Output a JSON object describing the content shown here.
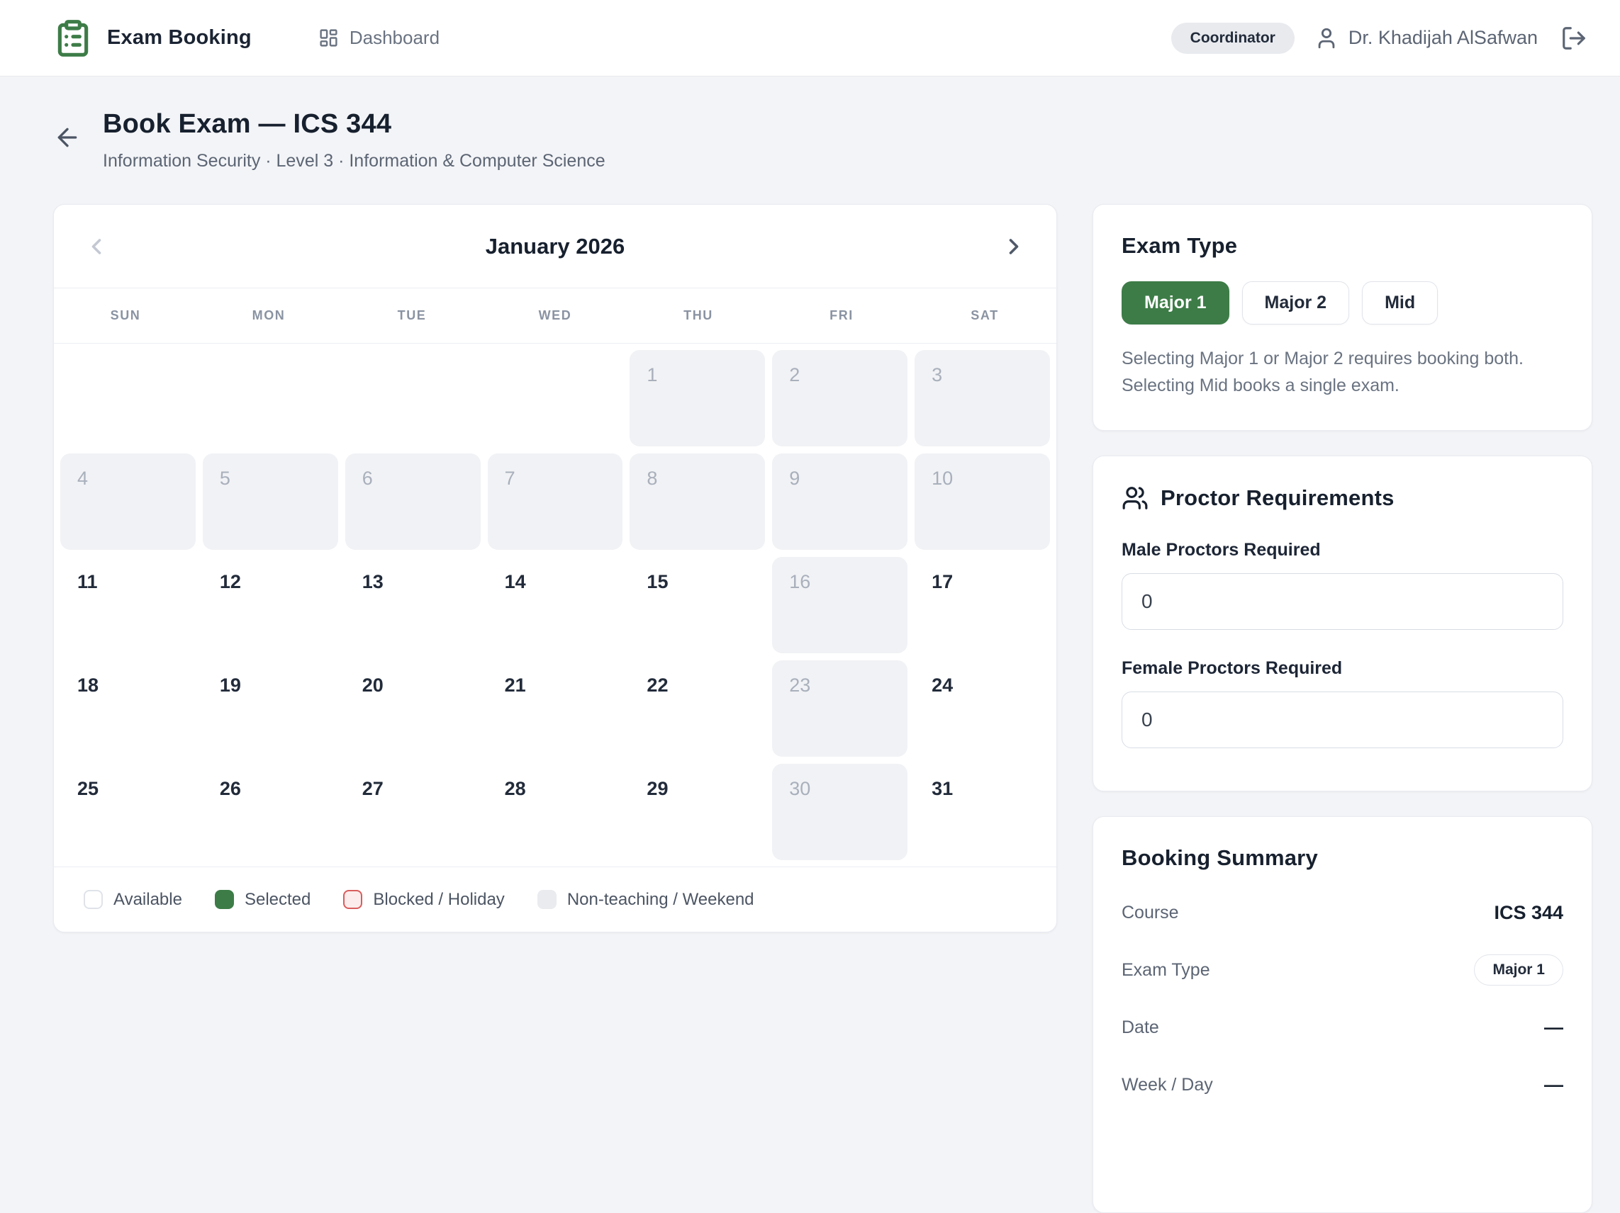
{
  "header": {
    "app_title": "Exam Booking",
    "nav_dashboard": "Dashboard",
    "role_badge": "Coordinator",
    "user_name": "Dr. Khadijah AlSafwan"
  },
  "page": {
    "title": "Book Exam — ICS 344",
    "subtitle": "Information Security · Level 3 · Information & Computer Science"
  },
  "calendar": {
    "month_title": "January 2026",
    "weekdays": [
      "SUN",
      "MON",
      "TUE",
      "WED",
      "THU",
      "FRI",
      "SAT"
    ],
    "cells": [
      {
        "day": "",
        "state": "empty"
      },
      {
        "day": "",
        "state": "empty"
      },
      {
        "day": "",
        "state": "empty"
      },
      {
        "day": "",
        "state": "empty"
      },
      {
        "day": "1",
        "state": "nonteaching"
      },
      {
        "day": "2",
        "state": "nonteaching"
      },
      {
        "day": "3",
        "state": "nonteaching"
      },
      {
        "day": "4",
        "state": "nonteaching"
      },
      {
        "day": "5",
        "state": "nonteaching"
      },
      {
        "day": "6",
        "state": "nonteaching"
      },
      {
        "day": "7",
        "state": "nonteaching"
      },
      {
        "day": "8",
        "state": "nonteaching"
      },
      {
        "day": "9",
        "state": "nonteaching"
      },
      {
        "day": "10",
        "state": "nonteaching"
      },
      {
        "day": "11",
        "state": "available"
      },
      {
        "day": "12",
        "state": "available"
      },
      {
        "day": "13",
        "state": "available"
      },
      {
        "day": "14",
        "state": "available"
      },
      {
        "day": "15",
        "state": "available"
      },
      {
        "day": "16",
        "state": "nonteaching"
      },
      {
        "day": "17",
        "state": "available"
      },
      {
        "day": "18",
        "state": "available"
      },
      {
        "day": "19",
        "state": "available"
      },
      {
        "day": "20",
        "state": "available"
      },
      {
        "day": "21",
        "state": "available"
      },
      {
        "day": "22",
        "state": "available"
      },
      {
        "day": "23",
        "state": "nonteaching"
      },
      {
        "day": "24",
        "state": "available"
      },
      {
        "day": "25",
        "state": "available"
      },
      {
        "day": "26",
        "state": "available"
      },
      {
        "day": "27",
        "state": "available"
      },
      {
        "day": "28",
        "state": "available"
      },
      {
        "day": "29",
        "state": "available"
      },
      {
        "day": "30",
        "state": "nonteaching"
      },
      {
        "day": "31",
        "state": "available"
      }
    ],
    "legend": [
      {
        "label": "Available",
        "type": "available"
      },
      {
        "label": "Selected",
        "type": "selected"
      },
      {
        "label": "Blocked / Holiday",
        "type": "blocked"
      },
      {
        "label": "Non-teaching / Weekend",
        "type": "nonteaching"
      }
    ]
  },
  "exam_type": {
    "heading": "Exam Type",
    "options": [
      "Major 1",
      "Major 2",
      "Mid"
    ],
    "selected": "Major 1",
    "helper": "Selecting Major 1 or Major 2 requires booking both. Selecting Mid books a single exam."
  },
  "proctors": {
    "heading": "Proctor Requirements",
    "male_label": "Male Proctors Required",
    "male_value": "0",
    "female_label": "Female Proctors Required",
    "female_value": "0"
  },
  "summary": {
    "heading": "Booking Summary",
    "rows": [
      {
        "label": "Course",
        "value": "ICS 344",
        "style": "bold"
      },
      {
        "label": "Exam Type",
        "value": "Major 1",
        "style": "pill"
      },
      {
        "label": "Date",
        "value": "—",
        "style": "bold"
      },
      {
        "label": "Week / Day",
        "value": "—",
        "style": "bold"
      }
    ]
  },
  "colors": {
    "accent_green": "#3d7c47",
    "blocked_red": "#d95d5d",
    "page_bg": "#f3f4f7"
  }
}
